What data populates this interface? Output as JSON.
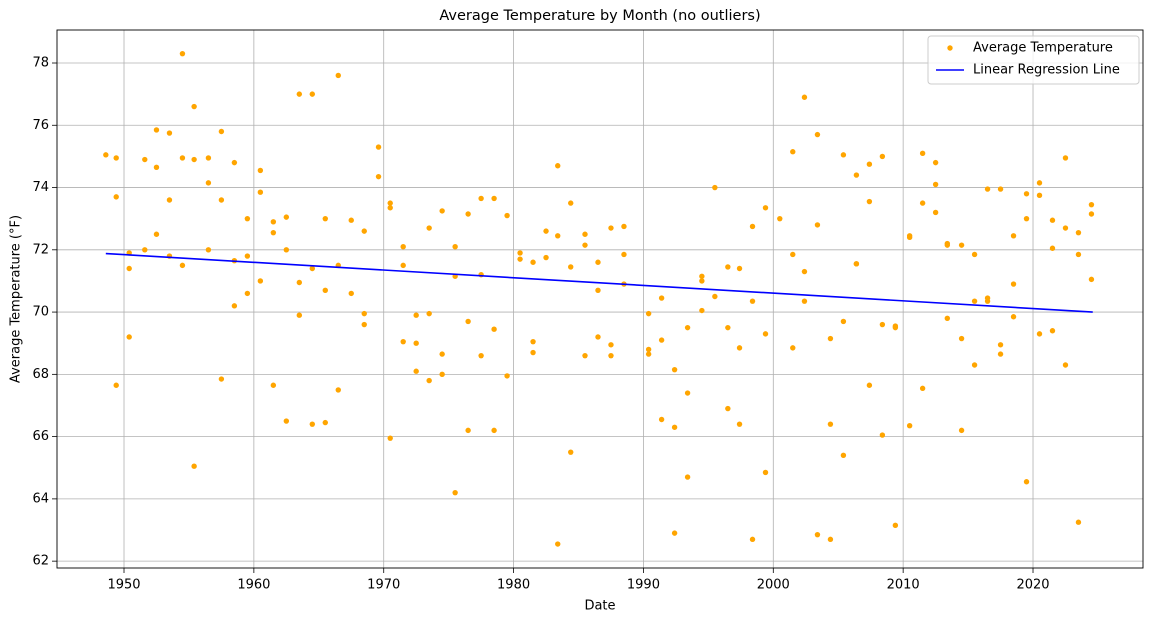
{
  "chart_data": {
    "type": "scatter",
    "title": "Average Temperature by Month (no outliers)",
    "x_label": "Date",
    "y_label": "Average Temperature (°F)",
    "xlim": [
      1944.84,
      2028.47
    ],
    "ylim": [
      61.78,
      79.06
    ],
    "xticks": [
      1950,
      1960,
      1970,
      1980,
      1990,
      2000,
      2010,
      2020
    ],
    "yticks": [
      62,
      64,
      66,
      68,
      70,
      72,
      74,
      76,
      78
    ],
    "grid": true,
    "legend": "upper right",
    "series": [
      {
        "name": "Average Temperature",
        "type": "scatter",
        "color": "#ffa500",
        "x": [
          1948.6,
          1949.4,
          1949.4,
          1949.4,
          1950.4,
          1950.4,
          1950.4,
          1951.6,
          1951.6,
          1952.5,
          1952.5,
          1952.5,
          1953.5,
          1953.5,
          1953.5,
          1954.5,
          1954.5,
          1954.5,
          1955.4,
          1955.4,
          1955.4,
          1956.5,
          1956.5,
          1956.5,
          1957.5,
          1957.5,
          1957.5,
          1958.5,
          1958.5,
          1958.5,
          1959.5,
          1959.5,
          1959.5,
          1960.5,
          1960.5,
          1960.5,
          1961.5,
          1961.5,
          1961.5,
          1962.5,
          1962.5,
          1962.5,
          1963.5,
          1963.5,
          1963.5,
          1964.5,
          1964.5,
          1964.5,
          1965.5,
          1965.5,
          1965.5,
          1966.5,
          1966.5,
          1966.5,
          1967.5,
          1967.5,
          1968.5,
          1968.5,
          1968.5,
          1969.6,
          1969.6,
          1970.5,
          1970.5,
          1970.5,
          1971.5,
          1971.5,
          1971.5,
          1972.5,
          1972.5,
          1972.5,
          1973.5,
          1973.5,
          1973.5,
          1974.5,
          1974.5,
          1974.5,
          1975.5,
          1975.5,
          1975.5,
          1976.5,
          1976.5,
          1976.5,
          1977.5,
          1977.5,
          1977.5,
          1978.5,
          1978.5,
          1978.5,
          1979.5,
          1979.5,
          1980.5,
          1980.5,
          1981.5,
          1981.5,
          1981.5,
          1982.5,
          1982.5,
          1983.4,
          1983.4,
          1983.4,
          1984.4,
          1984.4,
          1984.4,
          1985.5,
          1985.5,
          1985.5,
          1986.5,
          1986.5,
          1986.5,
          1987.5,
          1987.5,
          1987.5,
          1988.5,
          1988.5,
          1988.5,
          1990.4,
          1990.4,
          1990.4,
          1991.4,
          1991.4,
          1991.4,
          1992.4,
          1992.4,
          1992.4,
          1993.4,
          1993.4,
          1993.4,
          1994.5,
          1994.5,
          1994.5,
          1995.5,
          1995.5,
          1996.5,
          1996.5,
          1996.5,
          1997.4,
          1997.4,
          1997.4,
          1998.4,
          1998.4,
          1998.4,
          1999.4,
          1999.4,
          1999.4,
          2000.5,
          2001.5,
          2001.5,
          2001.5,
          2002.4,
          2002.4,
          2002.4,
          2003.4,
          2003.4,
          2003.4,
          2004.4,
          2004.4,
          2004.4,
          2005.4,
          2005.4,
          2005.4,
          2006.4,
          2006.4,
          2006.4,
          2007.4,
          2007.4,
          2007.4,
          2008.4,
          2008.4,
          2008.4,
          2009.4,
          2009.4,
          2009.4,
          2010.5,
          2010.5,
          2010.5,
          2011.5,
          2011.5,
          2011.5,
          2012.5,
          2012.5,
          2012.5,
          2013.4,
          2013.4,
          2013.4,
          2014.5,
          2014.5,
          2014.5,
          2015.5,
          2015.5,
          2015.5,
          2016.5,
          2016.5,
          2016.5,
          2017.5,
          2017.5,
          2017.5,
          2018.5,
          2018.5,
          2018.5,
          2019.5,
          2019.5,
          2019.5,
          2020.5,
          2020.5,
          2020.5,
          2021.5,
          2021.5,
          2021.5,
          2022.5,
          2022.5,
          2022.5,
          2023.5,
          2023.5,
          2023.5,
          2024.5,
          2024.5,
          2024.5
        ],
        "values": [
          75.05,
          67.65,
          74.95,
          73.7,
          71.4,
          69.2,
          71.9,
          74.9,
          72.0,
          75.85,
          74.65,
          72.5,
          75.75,
          73.6,
          71.8,
          78.3,
          74.95,
          71.5,
          65.05,
          76.6,
          74.9,
          74.95,
          74.15,
          72.0,
          75.8,
          73.6,
          67.85,
          74.8,
          71.65,
          70.2,
          73.0,
          71.8,
          70.6,
          74.55,
          73.85,
          71.0,
          72.9,
          72.55,
          67.65,
          73.05,
          72.0,
          66.5,
          77.0,
          70.95,
          69.9,
          77.0,
          71.4,
          66.4,
          73.0,
          70.7,
          66.45,
          77.6,
          71.5,
          67.5,
          72.95,
          70.6,
          72.6,
          69.95,
          69.6,
          75.3,
          74.35,
          73.5,
          73.35,
          65.95,
          72.1,
          71.5,
          69.05,
          69.9,
          68.1,
          69.0,
          72.7,
          69.95,
          67.8,
          73.25,
          68.0,
          68.65,
          72.1,
          71.15,
          64.2,
          73.15,
          69.7,
          66.2,
          73.65,
          71.2,
          68.6,
          73.65,
          69.45,
          66.2,
          73.1,
          67.95,
          71.7,
          71.9,
          71.6,
          69.05,
          68.7,
          71.75,
          72.6,
          74.7,
          72.45,
          62.55,
          73.5,
          71.45,
          65.5,
          72.5,
          72.15,
          68.6,
          71.6,
          70.7,
          69.2,
          72.7,
          68.6,
          68.95,
          72.75,
          71.85,
          70.9,
          69.95,
          68.65,
          68.8,
          70.45,
          69.1,
          66.55,
          68.15,
          66.3,
          62.9,
          69.5,
          67.4,
          64.7,
          71.15,
          71.0,
          70.05,
          74.0,
          70.5,
          71.45,
          69.5,
          66.9,
          71.4,
          68.85,
          66.4,
          72.75,
          70.35,
          62.7,
          73.35,
          69.3,
          64.85,
          73.0,
          75.15,
          71.85,
          68.85,
          76.9,
          71.3,
          70.35,
          75.7,
          72.8,
          62.85,
          69.15,
          66.4,
          62.7,
          75.05,
          69.7,
          65.4,
          74.4,
          71.55,
          71.55,
          74.75,
          73.55,
          67.65,
          75.0,
          69.6,
          66.05,
          69.5,
          69.55,
          63.15,
          72.45,
          72.4,
          66.35,
          75.1,
          73.5,
          67.55,
          74.8,
          74.1,
          73.2,
          72.2,
          72.15,
          69.8,
          72.15,
          69.15,
          66.2,
          71.85,
          70.35,
          68.3,
          73.95,
          70.45,
          70.35,
          73.95,
          68.95,
          68.65,
          72.45,
          70.9,
          69.85,
          73.8,
          73.0,
          64.55,
          74.15,
          73.75,
          69.3,
          72.95,
          72.05,
          69.4,
          74.95,
          72.7,
          68.3,
          72.55,
          71.85,
          63.25,
          73.45,
          73.15,
          71.05
        ]
      },
      {
        "name": "Linear Regression Line",
        "type": "line",
        "color": "#0000ff",
        "x": [
          1948.6,
          2024.6
        ],
        "values": [
          71.88,
          70.0
        ]
      }
    ]
  }
}
